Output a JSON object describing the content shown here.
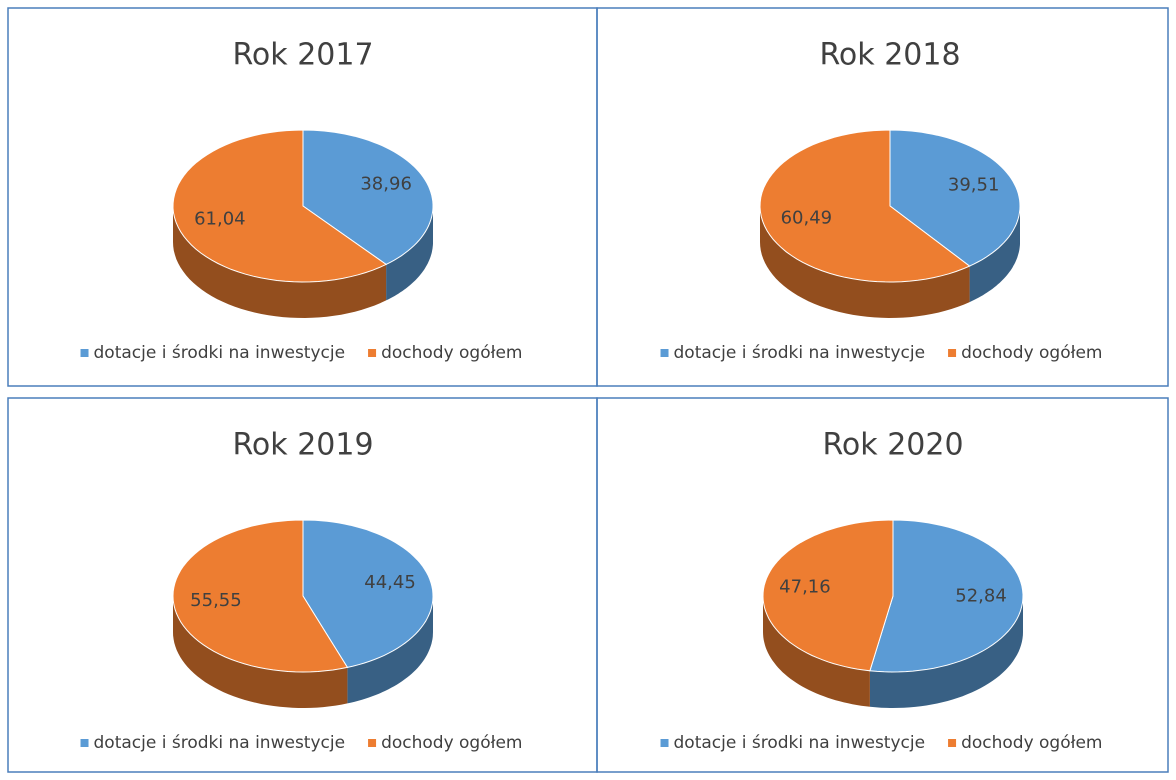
{
  "chart_data": [
    {
      "type": "pie",
      "title": "Rok 2017",
      "categories": [
        "dotacje i środki na inwestycje",
        "dochody ogółem"
      ],
      "values": [
        38.96,
        61.04
      ],
      "value_labels": [
        "38,96",
        "61,04"
      ],
      "colors": [
        "#5b9bd5",
        "#ed7d31"
      ]
    },
    {
      "type": "pie",
      "title": "Rok 2018",
      "categories": [
        "dotacje i środki na inwestycje",
        "dochody ogółem"
      ],
      "values": [
        39.51,
        60.49
      ],
      "value_labels": [
        "39,51",
        "60,49"
      ],
      "colors": [
        "#5b9bd5",
        "#ed7d31"
      ]
    },
    {
      "type": "pie",
      "title": "Rok 2019",
      "categories": [
        "dotacje i środki na inwestycje",
        "dochody ogółem"
      ],
      "values": [
        44.45,
        55.55
      ],
      "value_labels": [
        "44,45",
        "55,55"
      ],
      "colors": [
        "#5b9bd5",
        "#ed7d31"
      ]
    },
    {
      "type": "pie",
      "title": "Rok 2020",
      "categories": [
        "dotacje i środki na inwestycje",
        "dochody ogółem"
      ],
      "values": [
        52.84,
        47.16
      ],
      "value_labels": [
        "52,84",
        "47,16"
      ],
      "colors": [
        "#5b9bd5",
        "#ed7d31"
      ]
    }
  ]
}
